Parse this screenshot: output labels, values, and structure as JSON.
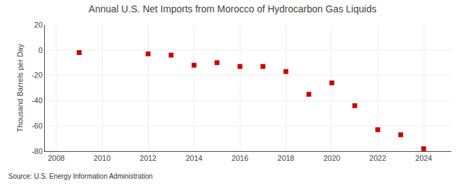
{
  "chart_data": {
    "type": "scatter",
    "title": "Annual U.S. Net Imports from Morocco of Hydrocarbon Gas Liquids",
    "ylabel": "Thousand Barrels per Day",
    "annotations": [
      "Source: U.S. Energy Information Administration"
    ],
    "x": [
      2009,
      2012,
      2013,
      2014,
      2015,
      2016,
      2017,
      2018,
      2019,
      2020,
      2021,
      2022,
      2023,
      2024
    ],
    "values": [
      -2,
      -3,
      -4,
      -12,
      -10,
      -13,
      -13,
      -17,
      -35,
      -26,
      -44,
      -63,
      -67,
      -78
    ],
    "color": "#cc0000",
    "marker": "square",
    "xlim": [
      2007.5,
      2025.2
    ],
    "ylim": [
      -80,
      20
    ],
    "xticks": [
      2008,
      2010,
      2012,
      2014,
      2016,
      2018,
      2020,
      2022,
      2024
    ],
    "yticks": [
      -80,
      -60,
      -40,
      -20,
      0,
      20
    ],
    "grid": true
  }
}
